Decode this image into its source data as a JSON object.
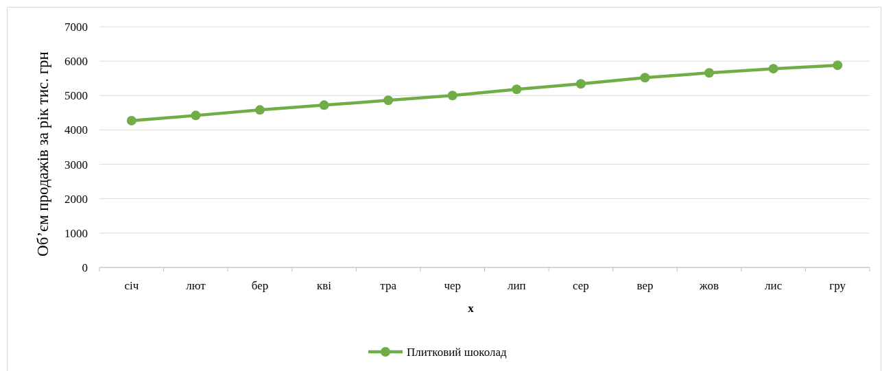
{
  "chart_data": {
    "type": "line",
    "xlabel": "x",
    "ylabel": "Об’єм продажів за рік  тис. грн",
    "categories": [
      "січ",
      "лют",
      "бер",
      "кві",
      "тра",
      "чер",
      "лип",
      "сер",
      "вер",
      "жов",
      "лис",
      "гру"
    ],
    "series": [
      {
        "name": "Плитковий шоколад",
        "color": "#70ad47",
        "values": [
          4270,
          4420,
          4580,
          4720,
          4860,
          5000,
          5180,
          5340,
          5520,
          5660,
          5780,
          5880
        ]
      }
    ],
    "ylim": [
      0,
      7000
    ],
    "yticks": [
      0,
      1000,
      2000,
      3000,
      4000,
      5000,
      6000,
      7000
    ],
    "grid": "y",
    "legend": "bottom",
    "marker": "circle"
  }
}
